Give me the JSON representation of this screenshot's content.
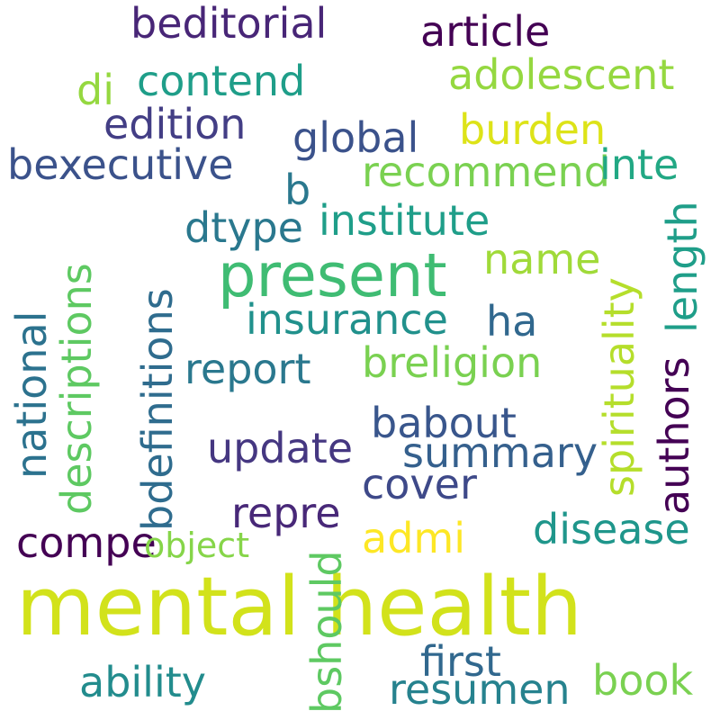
{
  "words": {
    "mental_health": {
      "text": "mental health",
      "color": "#d2e21b"
    },
    "present": {
      "text": "present",
      "color": "#3fbc73"
    },
    "beditorial": {
      "text": "beditorial",
      "color": "#482677"
    },
    "article": {
      "text": "article",
      "color": "#440154"
    },
    "adolescent": {
      "text": "adolescent",
      "color": "#95d840"
    },
    "contend": {
      "text": "contend",
      "color": "#1f9e89"
    },
    "di": {
      "text": "di",
      "color": "#95d840"
    },
    "edition": {
      "text": "edition",
      "color": "#433e85"
    },
    "global": {
      "text": "global",
      "color": "#3b528b"
    },
    "burden": {
      "text": "burden",
      "color": "#dde318"
    },
    "bexecutive": {
      "text": "bexecutive",
      "color": "#3b528b"
    },
    "recommend": {
      "text": "recommend",
      "color": "#7ad151"
    },
    "inte": {
      "text": "inte",
      "color": "#22a884"
    },
    "b": {
      "text": "b",
      "color": "#2a788e"
    },
    "institute": {
      "text": "institute",
      "color": "#1f9e89"
    },
    "dtype": {
      "text": "dtype",
      "color": "#2a788e"
    },
    "name": {
      "text": "name",
      "color": "#a0da39"
    },
    "insurance": {
      "text": "insurance",
      "color": "#21918c"
    },
    "ha": {
      "text": "ha",
      "color": "#31688e"
    },
    "breligion": {
      "text": "breligion",
      "color": "#7ad151"
    },
    "report": {
      "text": "report",
      "color": "#2a788e"
    },
    "babout": {
      "text": "babout",
      "color": "#39568c"
    },
    "summary": {
      "text": "summary",
      "color": "#35608d"
    },
    "update": {
      "text": "update",
      "color": "#453781"
    },
    "cover": {
      "text": "cover",
      "color": "#3e4989"
    },
    "repre": {
      "text": "repre",
      "color": "#482878"
    },
    "disease": {
      "text": "disease",
      "color": "#1f968b"
    },
    "compe": {
      "text": "compe",
      "color": "#440154"
    },
    "admi": {
      "text": "admi",
      "color": "#fde725"
    },
    "object": {
      "text": "object",
      "color": "#86d549"
    },
    "first": {
      "text": "first",
      "color": "#31688e"
    },
    "ability": {
      "text": "ability",
      "color": "#228c8d"
    },
    "resumen": {
      "text": "resumen",
      "color": "#26828e"
    },
    "book": {
      "text": "book",
      "color": "#7ad151"
    },
    "national": {
      "text": "national",
      "color": "#2c728e"
    },
    "descriptions": {
      "text": "descriptions",
      "color": "#5ec962"
    },
    "bdefinitions": {
      "text": "bdefinitions",
      "color": "#2f6c8e"
    },
    "spirituality": {
      "text": "spirituality",
      "color": "#b5de2b"
    },
    "authors": {
      "text": "authors",
      "color": "#440154"
    },
    "length": {
      "text": "length",
      "color": "#1f9e89"
    },
    "bshould": {
      "text": "bshould",
      "color": "#5ec962"
    }
  }
}
